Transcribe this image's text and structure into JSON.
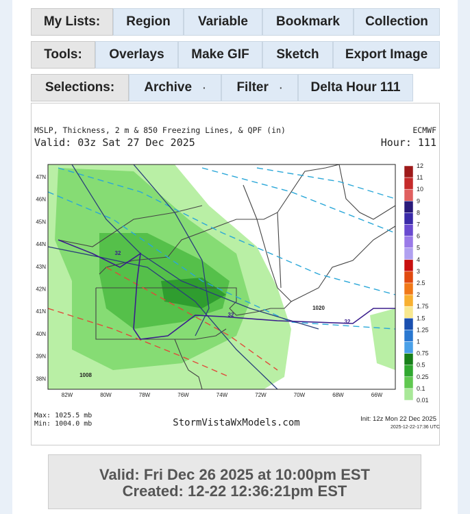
{
  "nav": {
    "rows": [
      {
        "label": "My Lists:",
        "items": [
          "Region",
          "Variable",
          "Bookmark",
          "Collection"
        ]
      },
      {
        "label": "Tools:",
        "items": [
          "Overlays",
          "Make GIF",
          "Sketch",
          "Export Image"
        ]
      },
      {
        "label": "Selections:",
        "items": [
          "Archive",
          "Filter",
          "Delta Hour 111"
        ]
      }
    ]
  },
  "map": {
    "title": "MSLP, Thickness, 2 m & 850 Freezing Lines, & QPF (in)",
    "model": "ECMWF",
    "valid": "Valid: 03z Sat 27 Dec 2025",
    "hour": "Hour: 111",
    "lat_labels": [
      "47N",
      "46N",
      "45N",
      "44N",
      "43N",
      "42N",
      "41N",
      "40N",
      "39N",
      "38N"
    ],
    "lon_labels": [
      "82W",
      "80W",
      "78W",
      "76W",
      "74W",
      "72W",
      "70W",
      "68W",
      "66W"
    ],
    "legend": [
      "12",
      "11",
      "10",
      "9",
      "8",
      "7",
      "6",
      "5",
      "4",
      "3",
      "2.5",
      "2",
      "1.75",
      "1.5",
      "1.25",
      "1",
      "0.75",
      "0.5",
      "0.25",
      "0.1",
      "0.01"
    ],
    "contour_labels": [
      "32",
      "32",
      "32",
      "1020",
      "1008"
    ],
    "max": "Max: 1025.5 mb",
    "min": "Min: 1004.0 mb",
    "site": "StormVistaWxModels.com",
    "init": "Init: 12z Mon 22 Dec 2025",
    "stamp": "2025-12-22-17:36 UTC"
  },
  "footer": {
    "valid": "Valid: Fri Dec 26 2025 at 10:00pm EST",
    "created": "Created: 12-22 12:36:21pm EST"
  }
}
